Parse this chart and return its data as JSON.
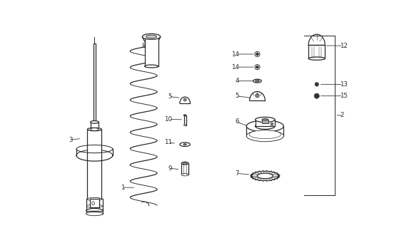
{
  "bg_color": "#ffffff",
  "line_color": "#2a2a2a",
  "figsize": [
    5.87,
    3.2
  ],
  "dpi": 100,
  "xlim": [
    0,
    11.0
  ],
  "ylim": [
    0,
    8.8
  ]
}
